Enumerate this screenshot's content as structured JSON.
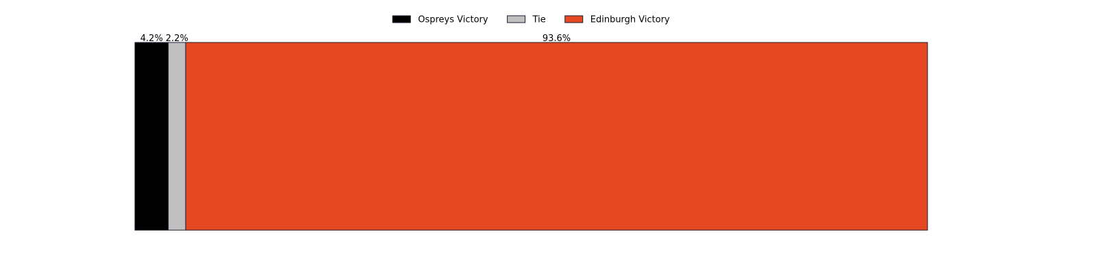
{
  "chart_data": {
    "type": "bar",
    "orientation": "horizontal-stacked",
    "title": "",
    "xlabel": "",
    "ylabel": "",
    "xlim": [
      0,
      100
    ],
    "grid": false,
    "legend_position": "top-center",
    "series": [
      {
        "name": "Ospreys Victory",
        "value": 4.2,
        "label": "4.2%",
        "color": "#000000"
      },
      {
        "name": "Tie",
        "value": 2.2,
        "label": "2.2%",
        "color": "#c0c0c0"
      },
      {
        "name": "Edinburgh Victory",
        "value": 93.6,
        "label": "93.6%",
        "color": "#e64823"
      }
    ]
  }
}
